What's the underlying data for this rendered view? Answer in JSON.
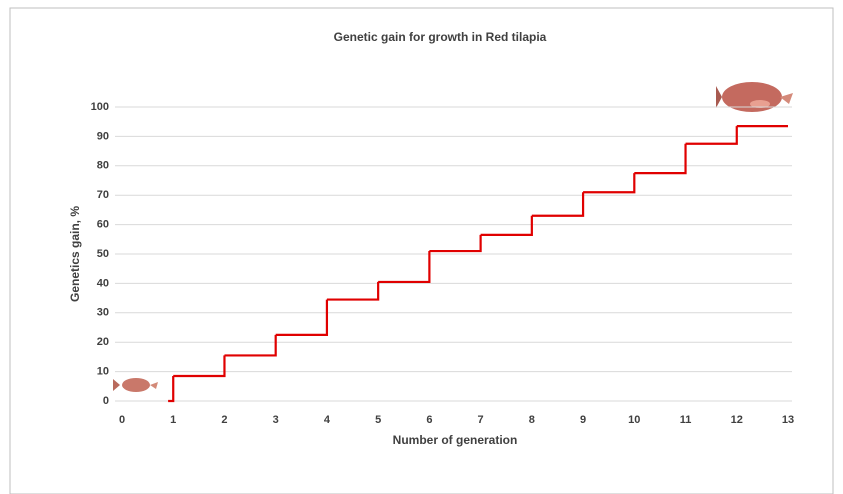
{
  "chart_data": {
    "type": "line",
    "step": "post",
    "title": "Genetic gain for growth in Red tilapia",
    "x_label": "Number of generation",
    "y_label": "Genetics gain, %",
    "x": [
      0.9,
      1,
      2,
      3,
      4,
      5,
      6,
      7,
      8,
      9,
      10,
      11,
      12,
      13
    ],
    "values": [
      0,
      8.5,
      15.5,
      22.5,
      34.5,
      40.5,
      51,
      56.5,
      63,
      71,
      77.5,
      87.5,
      93.5,
      93.5
    ],
    "color": "#e00000",
    "xlim": [
      0,
      13
    ],
    "xticks": [
      0,
      1,
      2,
      3,
      4,
      5,
      6,
      7,
      8,
      9,
      10,
      11,
      12,
      13
    ],
    "ylim": [
      0,
      100
    ],
    "yticks": [
      0,
      10,
      20,
      30,
      40,
      50,
      60,
      70,
      80,
      90,
      100
    ],
    "grid": true
  }
}
